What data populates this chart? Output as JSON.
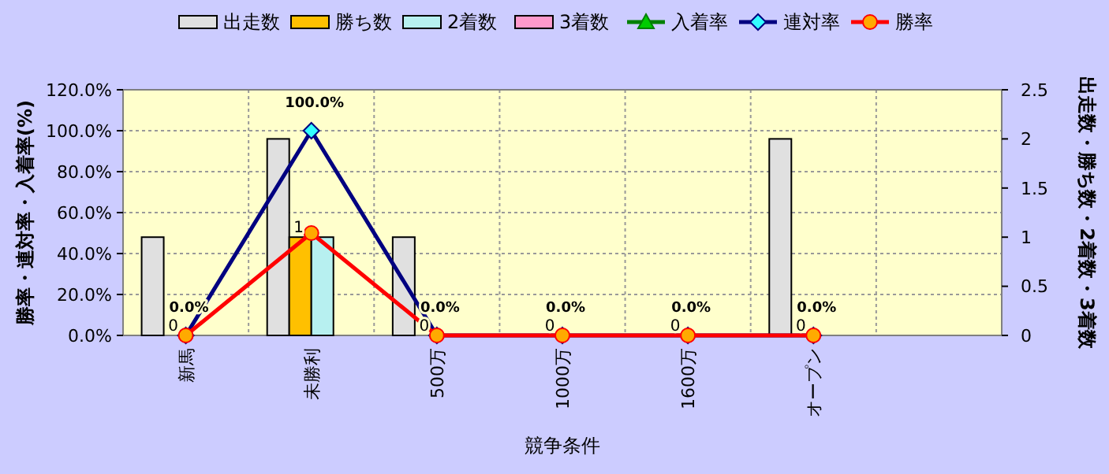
{
  "chart_data": {
    "type": "bar",
    "xlabel": "競争条件",
    "ylabel": "勝率・連対率・入着率(%)",
    "y2label": "出走数・勝ち数・2着数・3着数",
    "categories": [
      "新馬",
      "未勝利",
      "500万",
      "1000万",
      "1600万",
      "オープン",
      null
    ],
    "series": [
      {
        "name": "出走数",
        "color": "#e0e0e0",
        "axis": "y2",
        "values": [
          1,
          2,
          1,
          0,
          0,
          2,
          null
        ]
      },
      {
        "name": "勝ち数",
        "color": "#ffc000",
        "axis": "y2",
        "values": [
          0,
          1,
          0,
          0,
          0,
          0,
          null
        ],
        "value_labels": [
          "0",
          "1",
          "0",
          "0",
          "0",
          "0",
          null
        ]
      },
      {
        "name": "2着数",
        "color": "#b7f0f0",
        "axis": "y2",
        "values": [
          0,
          1,
          0,
          0,
          0,
          0,
          null
        ]
      },
      {
        "name": "3着数",
        "color": "#ff99cc",
        "axis": "y2",
        "values": [
          0,
          0,
          0,
          0,
          0,
          0,
          null
        ]
      },
      {
        "name": "入着率",
        "type": "line",
        "color": "#008000",
        "marker": "triangle",
        "values": [
          null,
          null,
          null,
          null,
          null,
          null,
          null
        ]
      },
      {
        "name": "連対率",
        "type": "line",
        "color": "#000080",
        "marker": "diamond",
        "values": [
          0,
          100,
          0,
          0,
          0,
          0,
          null
        ],
        "value_labels": [
          "0.0%",
          "100.0%",
          "0.0%",
          "0.0%",
          "0.0%",
          "0.0%",
          null
        ]
      },
      {
        "name": "勝率",
        "type": "line",
        "color": "#ff0000",
        "marker": "circle",
        "values": [
          0,
          50,
          0,
          0,
          0,
          0,
          null
        ]
      }
    ],
    "ylim": [
      0,
      120
    ],
    "yticks": [
      {
        "value": 0,
        "label": "0.0%"
      },
      {
        "value": 20,
        "label": "20.0%"
      },
      {
        "value": 40,
        "label": "40.0%"
      },
      {
        "value": 60,
        "label": "60.0%"
      },
      {
        "value": 80,
        "label": "80.0%"
      },
      {
        "value": 100,
        "label": "100.0%"
      },
      {
        "value": 120,
        "label": "120.0%"
      }
    ],
    "y2lim": [
      0,
      2.5
    ],
    "y2ticks": [
      0,
      0.5,
      1,
      1.5,
      2,
      2.5
    ],
    "grid": true,
    "legend": "top"
  }
}
